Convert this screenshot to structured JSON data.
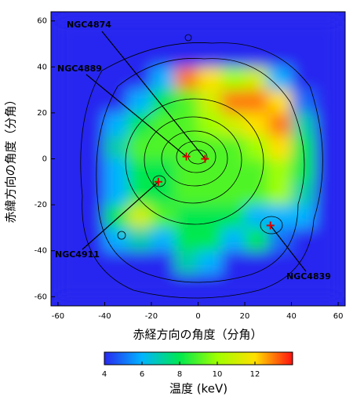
{
  "chart_data": {
    "type": "heatmap",
    "xlabel": "赤経方向の角度（分角）",
    "ylabel": "赤緯方向の角度（分角）",
    "x": [
      -55,
      -45,
      -35,
      -25,
      -15,
      -5,
      5,
      15,
      25,
      35,
      45,
      55
    ],
    "y": [
      55,
      45,
      35,
      25,
      15,
      5,
      -5,
      -15,
      -25,
      -35,
      -45,
      -55
    ],
    "values": [
      [
        4,
        4,
        4,
        4,
        4,
        4,
        4,
        4,
        4,
        4,
        4,
        4
      ],
      [
        4,
        4,
        4,
        4,
        4,
        4,
        4,
        4,
        4,
        4,
        4,
        4
      ],
      [
        4,
        4,
        4,
        4,
        6,
        13,
        12,
        10,
        11,
        6,
        4,
        4
      ],
      [
        4,
        4,
        4,
        6,
        8,
        9,
        11,
        13,
        13,
        12,
        5,
        4
      ],
      [
        4,
        4,
        6,
        8,
        9,
        9,
        10,
        11,
        12,
        13,
        7,
        4
      ],
      [
        4,
        4,
        7,
        9,
        9,
        9,
        9,
        9,
        10,
        12,
        8,
        4
      ],
      [
        4,
        4,
        6,
        8,
        8,
        9,
        9,
        9,
        9,
        10,
        8,
        4
      ],
      [
        4,
        4,
        6,
        8,
        8,
        9,
        9,
        9,
        9,
        10,
        7,
        4
      ],
      [
        4,
        4,
        8,
        11,
        9,
        8,
        8,
        8,
        6,
        6,
        6,
        4
      ],
      [
        4,
        4,
        6,
        7,
        6,
        8,
        8,
        6,
        8,
        5,
        4,
        4
      ],
      [
        4,
        4,
        4,
        4,
        4,
        7,
        6,
        4,
        4,
        4,
        4,
        4
      ],
      [
        4,
        4,
        4,
        4,
        4,
        4,
        4,
        4,
        4,
        4,
        4,
        4
      ]
    ],
    "xlim": [
      -63,
      63
    ],
    "ylim": [
      -64,
      64
    ],
    "xticks": [
      -60,
      -40,
      -20,
      0,
      20,
      40,
      60
    ],
    "yticks": [
      60,
      40,
      20,
      0,
      -20,
      -40,
      -60
    ],
    "colors": [
      "#2828f0",
      "#00b4ff",
      "#00e850",
      "#a0ff00",
      "#ffe000",
      "#ff1010"
    ],
    "colorbar": {
      "label": "温度 (keV)",
      "clim": [
        4,
        14
      ],
      "ticks": [
        4,
        6,
        8,
        10,
        12
      ]
    },
    "annotations": [
      {
        "label": "NGC4874",
        "x": 3,
        "y": 0
      },
      {
        "label": "NGC4889",
        "x": -5,
        "y": 1
      },
      {
        "label": "NGC4911",
        "x": -17,
        "y": -10
      },
      {
        "label": "NGC4839",
        "x": 31,
        "y": -29
      }
    ]
  }
}
